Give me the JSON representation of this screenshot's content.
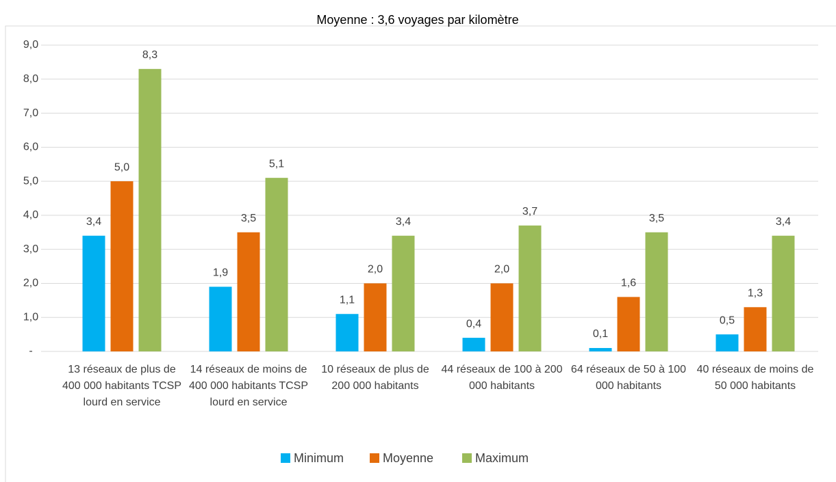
{
  "chart_data": {
    "type": "bar",
    "title": "Moyenne : 3,6 voyages par kilomètre",
    "categories": [
      "13 réseaux de plus de 400 000 habitants TCSP lourd en service",
      "14 réseaux de moins de 400 000 habitants TCSP lourd en service",
      "10 réseaux de plus de 200 000 habitants",
      "44 réseaux de 100 à 200 000 habitants",
      "64 réseaux de 50 à 100 000 habitants",
      "40 réseaux de moins de 50 000 habitants"
    ],
    "series": [
      {
        "name": "Minimum",
        "color": "#00b0f0",
        "values": [
          3.4,
          1.9,
          1.1,
          0.4,
          0.1,
          0.5
        ],
        "value_labels": [
          "3,4",
          "1,9",
          "1,1",
          "0,4",
          "0,1",
          "0,5"
        ]
      },
      {
        "name": "Moyenne",
        "color": "#e46c0a",
        "values": [
          5.0,
          3.5,
          2.0,
          2.0,
          1.6,
          1.3
        ],
        "value_labels": [
          "5,0",
          "3,5",
          "2,0",
          "2,0",
          "1,6",
          "1,3"
        ]
      },
      {
        "name": "Maximum",
        "color": "#9bbb59",
        "values": [
          8.3,
          5.1,
          3.4,
          3.7,
          3.5,
          3.4
        ],
        "value_labels": [
          "8,3",
          "5,1",
          "3,4",
          "3,7",
          "3,5",
          "3,4"
        ]
      }
    ],
    "ylim": [
      0,
      9
    ],
    "yticks": [
      {
        "value": 0,
        "label": "-"
      },
      {
        "value": 1,
        "label": "1,0"
      },
      {
        "value": 2,
        "label": "2,0"
      },
      {
        "value": 3,
        "label": "3,0"
      },
      {
        "value": 4,
        "label": "4,0"
      },
      {
        "value": 5,
        "label": "5,0"
      },
      {
        "value": 6,
        "label": "6,0"
      },
      {
        "value": 7,
        "label": "7,0"
      },
      {
        "value": 8,
        "label": "8,0"
      },
      {
        "value": 9,
        "label": "9,0"
      }
    ],
    "grid": true
  }
}
